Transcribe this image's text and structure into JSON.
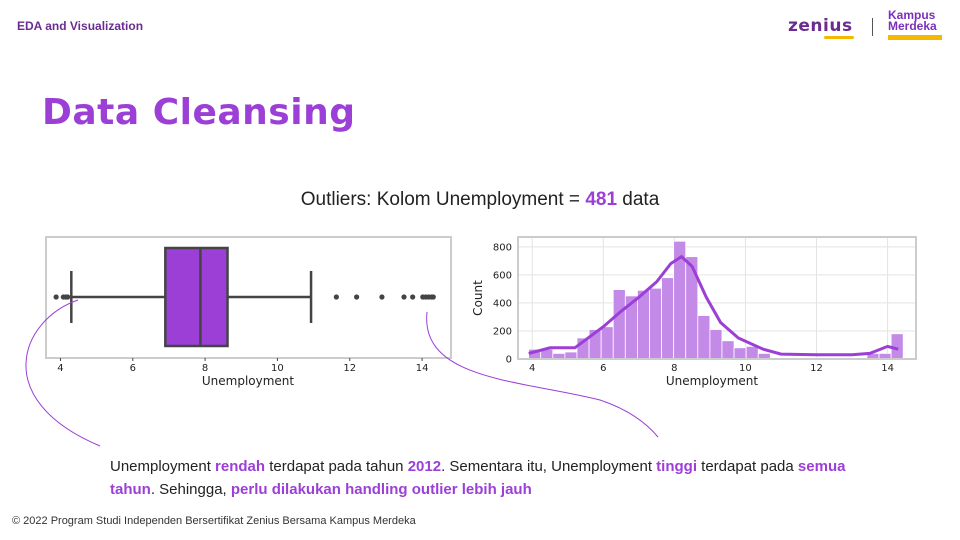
{
  "header": {
    "course": "EDA and Visualization",
    "logo_zenius": "zenius",
    "logo_kampus_line1": "Kampus",
    "logo_kampus_line2": "Merdeka"
  },
  "title": "Data Cleansing",
  "subtitle": {
    "prefix": "Outliers: Kolom Unemployment = ",
    "count": "481",
    "suffix": " data"
  },
  "conclusion": {
    "p1": "Unemployment ",
    "h1": "rendah",
    "p2": " terdapat pada tahun ",
    "h2": "2012",
    "p3": ". Sementara itu, Unemployment ",
    "h3": "tinggi",
    "p4": " terdapat pada ",
    "h4": "semua tahun",
    "p5": ". Sehingga, ",
    "h5": "perlu dilakukan handling outlier lebih jauh"
  },
  "footer": "© 2022 Program Studi Independen Bersertifikat Zenius Bersama Kampus Merdeka",
  "colors": {
    "accent": "#9b3fd6",
    "box_fill": "#9b3fd6",
    "hist_fill": "#c48ae8",
    "kde_line": "#9b3fd6"
  },
  "chart_data": [
    {
      "type": "boxplot",
      "xlabel": "Unemployment",
      "xticks": [
        4,
        6,
        8,
        10,
        12,
        14
      ],
      "xlim": [
        3.6,
        14.8
      ],
      "q1": 6.9,
      "median": 7.87,
      "q3": 8.62,
      "whisker_low": 4.3,
      "whisker_high": 10.93,
      "outliers": [
        3.88,
        4.08,
        4.15,
        4.2,
        11.63,
        12.19,
        12.89,
        13.5,
        13.74,
        14.02,
        14.1,
        14.18,
        14.26,
        14.31
      ],
      "grid": false
    },
    {
      "type": "histogram",
      "xlabel": "Unemployment",
      "ylabel": "Count",
      "xticks": [
        4,
        6,
        8,
        10,
        12,
        14
      ],
      "yticks": [
        0,
        200,
        400,
        600,
        800
      ],
      "xlim": [
        3.6,
        14.8
      ],
      "ylim": [
        0,
        870
      ],
      "bins_x": [
        3.9,
        4.24,
        4.58,
        4.92,
        5.26,
        5.6,
        5.94,
        6.28,
        6.62,
        6.96,
        7.3,
        7.64,
        7.98,
        8.32,
        8.66,
        9.0,
        9.34,
        9.68,
        10.02,
        10.36,
        10.7,
        11.04,
        11.38,
        11.72,
        12.06,
        12.4,
        12.74,
        13.08,
        13.42,
        13.76,
        14.1,
        14.44
      ],
      "counts": [
        70,
        70,
        40,
        50,
        150,
        210,
        230,
        495,
        450,
        490,
        505,
        580,
        840,
        730,
        310,
        210,
        130,
        80,
        90,
        40,
        10,
        10,
        10,
        10,
        10,
        10,
        10,
        10,
        40,
        40,
        180
      ],
      "kde_x": [
        3.9,
        4.5,
        5.2,
        6.0,
        6.5,
        7.0,
        7.5,
        7.9,
        8.2,
        8.5,
        8.9,
        9.3,
        9.8,
        10.5,
        11.0,
        12.0,
        13.0,
        13.5,
        14.0,
        14.3
      ],
      "kde_y": [
        40,
        80,
        80,
        230,
        340,
        440,
        550,
        680,
        730,
        660,
        440,
        260,
        150,
        70,
        35,
        30,
        30,
        40,
        90,
        70
      ],
      "grid": true
    }
  ]
}
